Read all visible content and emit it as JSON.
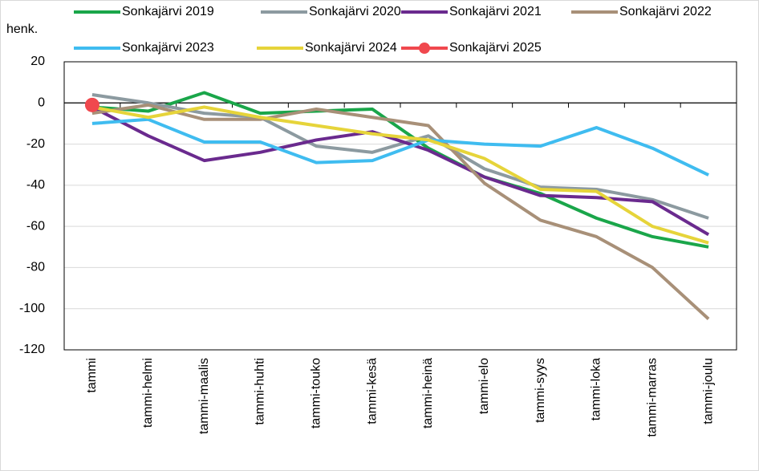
{
  "chart_data": {
    "type": "line",
    "y_label": "henk.",
    "categories": [
      "tammi",
      "tammi-helmi",
      "tammi-maalis",
      "tammi-huhti",
      "tammi-touko",
      "tammi-kesä",
      "tammi-heinä",
      "tammi-elo",
      "tammi-syys",
      "tammi-loka",
      "tammi-marras",
      "tammi-joulu"
    ],
    "series": [
      {
        "name": "Sonkajärvi 2019",
        "color": "#1aa64a",
        "values": [
          -2,
          -4,
          5,
          -5,
          -4,
          -3,
          -22,
          -36,
          -44,
          -56,
          -65,
          -70
        ]
      },
      {
        "name": "Sonkajärvi 2020",
        "color": "#8c9aa0",
        "values": [
          4,
          0,
          -5,
          -7,
          -21,
          -24,
          -16,
          -32,
          -41,
          -42,
          -47,
          -56
        ]
      },
      {
        "name": "Sonkajärvi 2021",
        "color": "#6a2a8e",
        "values": [
          -2,
          -16,
          -28,
          -24,
          -18,
          -14,
          -23,
          -36,
          -45,
          -46,
          -48,
          -64
        ]
      },
      {
        "name": "Sonkajärvi 2022",
        "color": "#a89078",
        "values": [
          -5,
          -1,
          -8,
          -8,
          -3,
          -7,
          -11,
          -39,
          -57,
          -65,
          -80,
          -105
        ]
      },
      {
        "name": "Sonkajärvi 2023",
        "color": "#3fbcf0",
        "values": [
          -10,
          -8,
          -19,
          -19,
          -29,
          -28,
          -18,
          -20,
          -21,
          -12,
          -22,
          -35
        ]
      },
      {
        "name": "Sonkajärvi 2024",
        "color": "#e6d43a",
        "values": [
          -2,
          -7,
          -2,
          -7,
          -11,
          -15,
          -18,
          -27,
          -42,
          -43,
          -60,
          -68
        ]
      },
      {
        "name": "Sonkajärvi 2025",
        "color": "#f0484e",
        "marker": true,
        "values": [
          -1,
          null,
          null,
          null,
          null,
          null,
          null,
          null,
          null,
          null,
          null,
          null
        ]
      }
    ],
    "ylim": [
      -120,
      20
    ],
    "yticks": [
      -120,
      -100,
      -80,
      -60,
      -40,
      -20,
      0,
      20
    ],
    "grid": true
  }
}
